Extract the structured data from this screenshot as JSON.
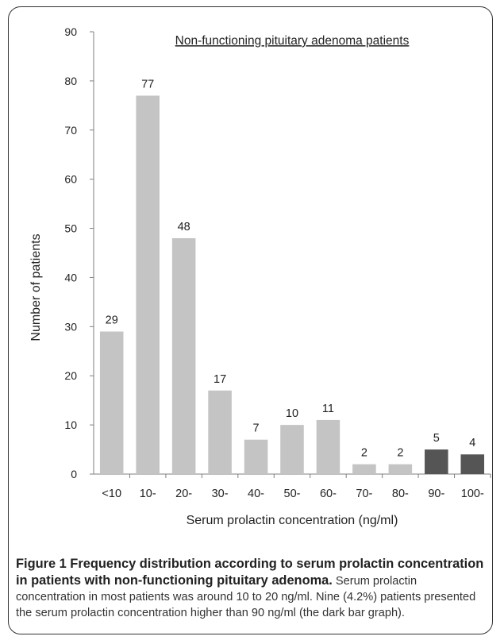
{
  "chart_data": {
    "type": "bar",
    "title": "Non-functioning pituitary adenoma patients",
    "xlabel": "Serum prolactin concentration (ng/ml)",
    "ylabel": "Number of patients",
    "categories": [
      "<10",
      "10-",
      "20-",
      "30-",
      "40-",
      "50-",
      "60-",
      "70-",
      "80-",
      "90-",
      "100-"
    ],
    "values": [
      29,
      77,
      48,
      17,
      7,
      10,
      11,
      2,
      2,
      5,
      4
    ],
    "highlight": [
      false,
      false,
      false,
      false,
      false,
      false,
      false,
      false,
      false,
      true,
      true
    ],
    "ylim": [
      0,
      90
    ],
    "yticks": [
      0,
      10,
      20,
      30,
      40,
      50,
      60,
      70,
      80,
      90
    ],
    "grid": false,
    "colors": {
      "bar": "#c4c4c4",
      "bar_highlight": "#555555",
      "axis": "#7f7f7f",
      "text": "#222222"
    }
  },
  "caption": {
    "bold": "Figure 1 Frequency distribution according to serum prolactin concentration in patients with non-functioning pituitary adenoma.",
    "body": "Serum prolactin concentration in most patients was around 10 to 20 ng/ml. Nine (4.2%) patients presented the serum prolactin concentration higher than 90 ng/ml (the dark bar graph)."
  }
}
